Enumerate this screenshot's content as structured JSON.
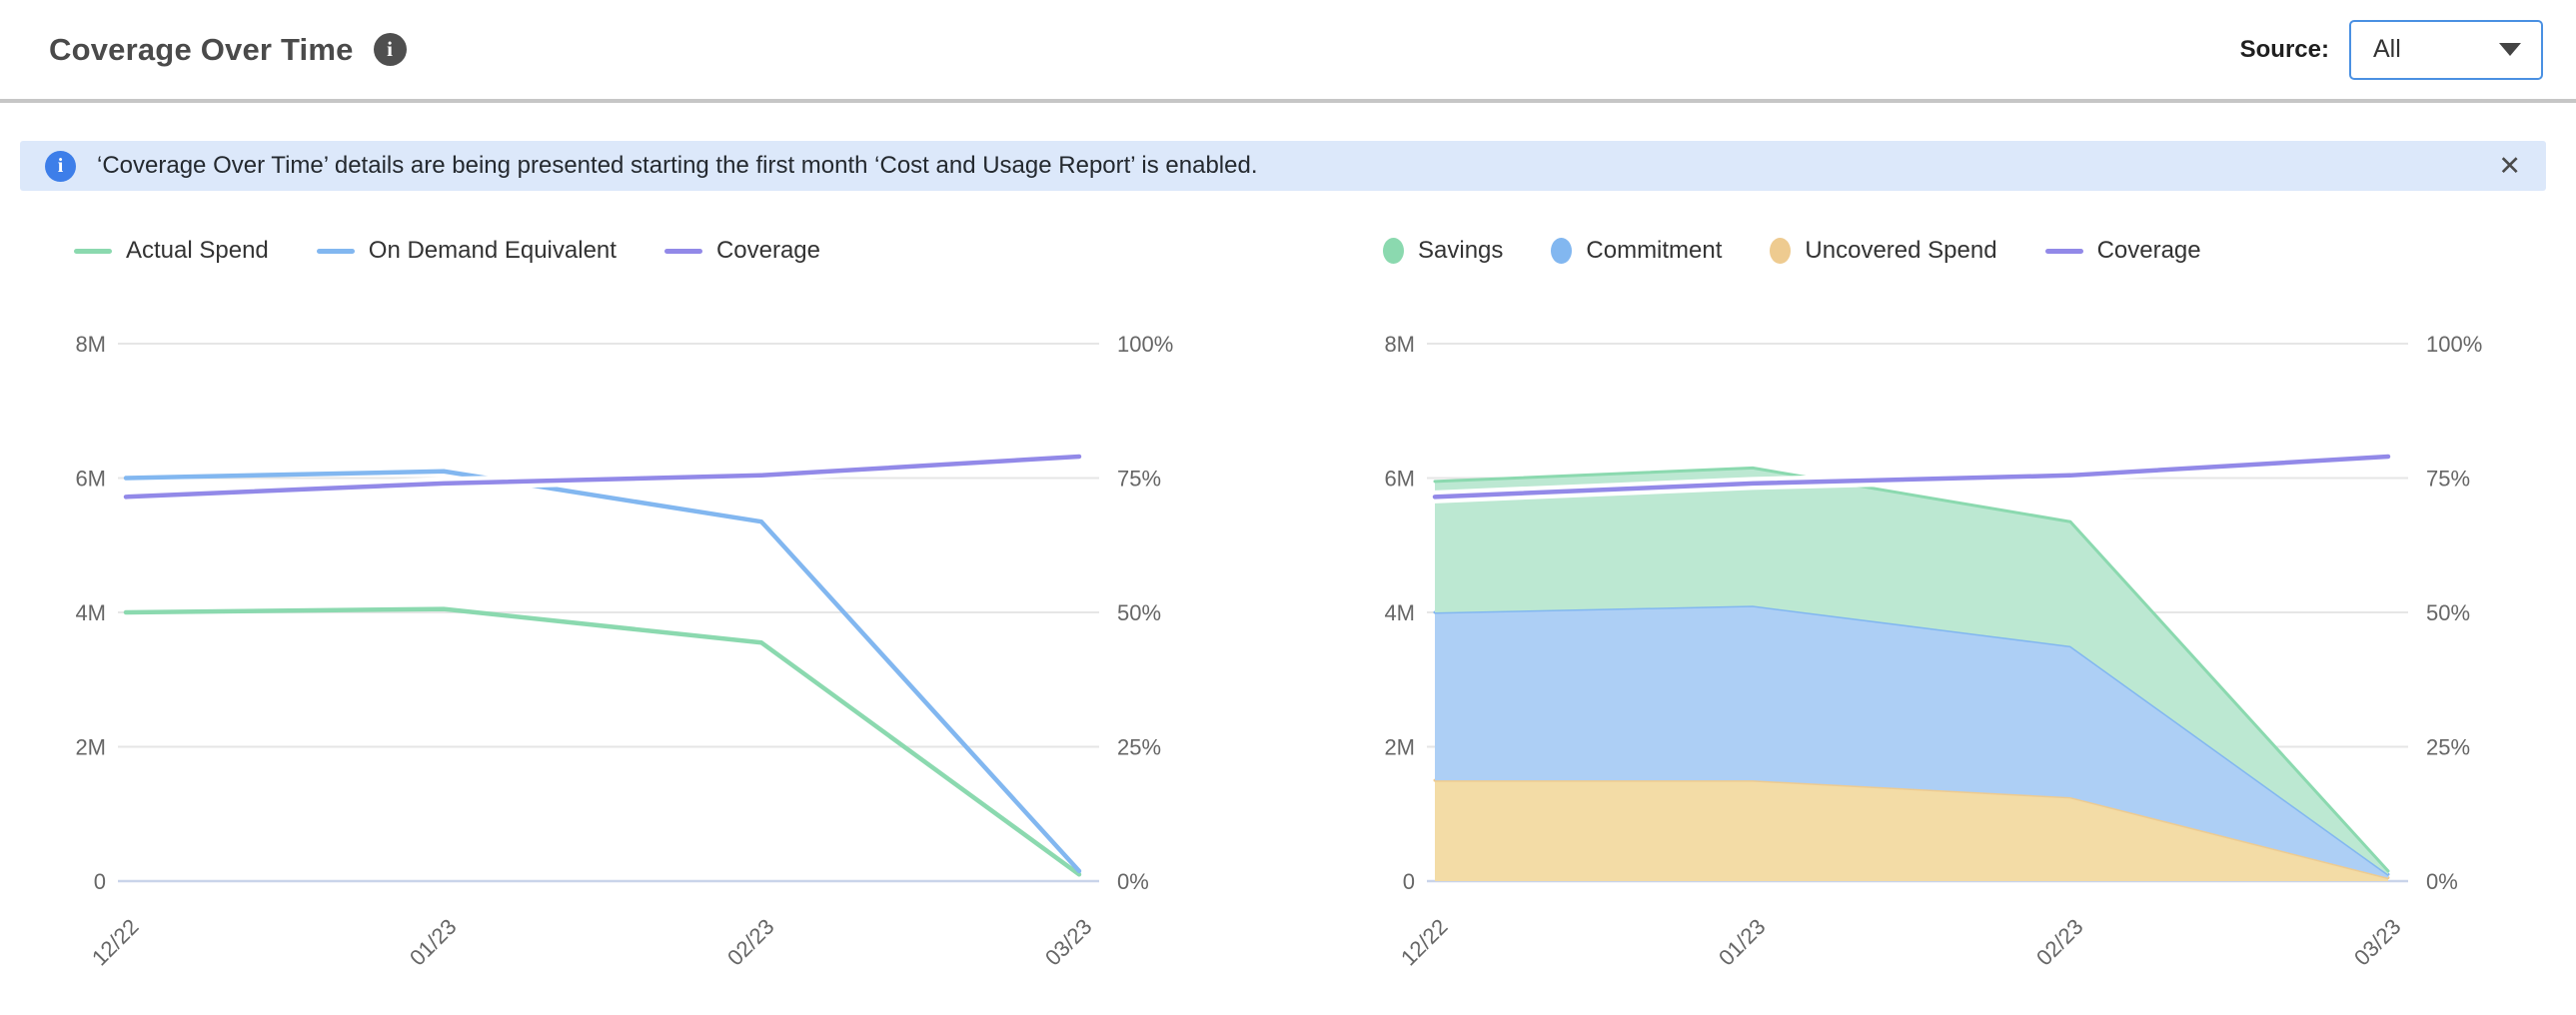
{
  "header": {
    "title": "Coverage Over Time",
    "source_label": "Source:",
    "source_value": "All"
  },
  "icons": {
    "header_info_glyph": "i",
    "banner_info_glyph": "i",
    "close_glyph": "✕"
  },
  "banner": {
    "text": "‘Coverage Over Time’ details are being presented starting the first month ‘Cost and Usage Report’ is enabled."
  },
  "colors": {
    "accent_blue": "#4A90E2",
    "banner_bg": "#DCE8FA",
    "banner_icon_blue": "#3D7EE9",
    "divider_gray": "#C6C6C6",
    "grid": "#E6E6E6",
    "zero_axis": "#C9D4EA",
    "axis_label": "#666666",
    "green": "#8BD9AF",
    "green_fill": "#BCE8D2",
    "blue": "#82B7F0",
    "blue_fill": "#ADCFF5",
    "purple": "#9289E8",
    "orange": "#EECB90",
    "orange_fill": "#F3DCA6"
  },
  "chart_data": [
    {
      "type": "line",
      "title": "Spend vs On Demand Equivalent",
      "categories": [
        "12/22",
        "01/23",
        "02/23",
        "03/23"
      ],
      "y_left": {
        "max": 8,
        "unit": "M",
        "ticks": [
          {
            "label": "8M",
            "value": 8
          },
          {
            "label": "6M",
            "value": 6
          },
          {
            "label": "4M",
            "value": 4
          },
          {
            "label": "2M",
            "value": 2
          },
          {
            "label": "0",
            "value": 0
          }
        ]
      },
      "y_right": {
        "max": 100,
        "unit": "%",
        "ticks": [
          {
            "label": "100%",
            "value": 100
          },
          {
            "label": "75%",
            "value": 75
          },
          {
            "label": "50%",
            "value": 50
          },
          {
            "label": "25%",
            "value": 25
          },
          {
            "label": "0%",
            "value": 0
          }
        ]
      },
      "grid": true,
      "legend_position": "top",
      "series": [
        {
          "name": "Actual Spend",
          "role": "line",
          "axis": "left",
          "color": "#8BD9AF",
          "values": [
            4.0,
            4.05,
            3.55,
            0.1
          ]
        },
        {
          "name": "On Demand Equivalent",
          "role": "line",
          "axis": "left",
          "color": "#82B7F0",
          "values": [
            6.0,
            6.1,
            5.35,
            0.15
          ]
        },
        {
          "name": "Coverage",
          "role": "line",
          "axis": "right",
          "color": "#9289E8",
          "halo": true,
          "values": [
            71.5,
            74,
            75.5,
            79
          ]
        }
      ],
      "legend": [
        {
          "label": "Actual Spend",
          "marker": "line",
          "color": "#8BD9AF"
        },
        {
          "label": "On Demand Equivalent",
          "marker": "line",
          "color": "#82B7F0"
        },
        {
          "label": "Coverage",
          "marker": "line",
          "color": "#9289E8"
        }
      ]
    },
    {
      "type": "stacked-area",
      "title": "Savings / Commitment / Uncovered Spend",
      "categories": [
        "12/22",
        "01/23",
        "02/23",
        "03/23"
      ],
      "y_left": {
        "max": 8,
        "unit": "M",
        "ticks": [
          {
            "label": "8M",
            "value": 8
          },
          {
            "label": "6M",
            "value": 6
          },
          {
            "label": "4M",
            "value": 4
          },
          {
            "label": "2M",
            "value": 2
          },
          {
            "label": "0",
            "value": 0
          }
        ]
      },
      "y_right": {
        "max": 100,
        "unit": "%",
        "ticks": [
          {
            "label": "100%",
            "value": 100
          },
          {
            "label": "75%",
            "value": 75
          },
          {
            "label": "50%",
            "value": 50
          },
          {
            "label": "25%",
            "value": 25
          },
          {
            "label": "0%",
            "value": 0
          }
        ]
      },
      "grid": true,
      "legend_position": "top",
      "series": [
        {
          "name": "Uncovered Spend",
          "role": "area",
          "stack": 0,
          "axis": "left",
          "color": "#EECB90",
          "fill": "#F3DCA6",
          "values": [
            1.5,
            1.5,
            1.25,
            0.05
          ]
        },
        {
          "name": "Commitment",
          "role": "area",
          "stack": 1,
          "axis": "left",
          "color": "#82B7F0",
          "fill": "#ADCFF5",
          "values": [
            2.5,
            2.6,
            2.25,
            0.05
          ]
        },
        {
          "name": "Savings",
          "role": "area",
          "stack": 2,
          "axis": "left",
          "color": "#8BD9AF",
          "fill": "#BCE8D2",
          "values": [
            1.95,
            2.05,
            1.85,
            0.05
          ]
        },
        {
          "name": "Coverage",
          "role": "line",
          "axis": "right",
          "color": "#9289E8",
          "halo": true,
          "values": [
            71.5,
            74,
            75.5,
            79
          ]
        }
      ],
      "legend": [
        {
          "label": "Savings",
          "marker": "circle",
          "color": "#8BD9AF"
        },
        {
          "label": "Commitment",
          "marker": "circle",
          "color": "#82B7F0"
        },
        {
          "label": "Uncovered Spend",
          "marker": "circle",
          "color": "#EECB90"
        },
        {
          "label": "Coverage",
          "marker": "line",
          "color": "#9289E8"
        }
      ]
    }
  ]
}
